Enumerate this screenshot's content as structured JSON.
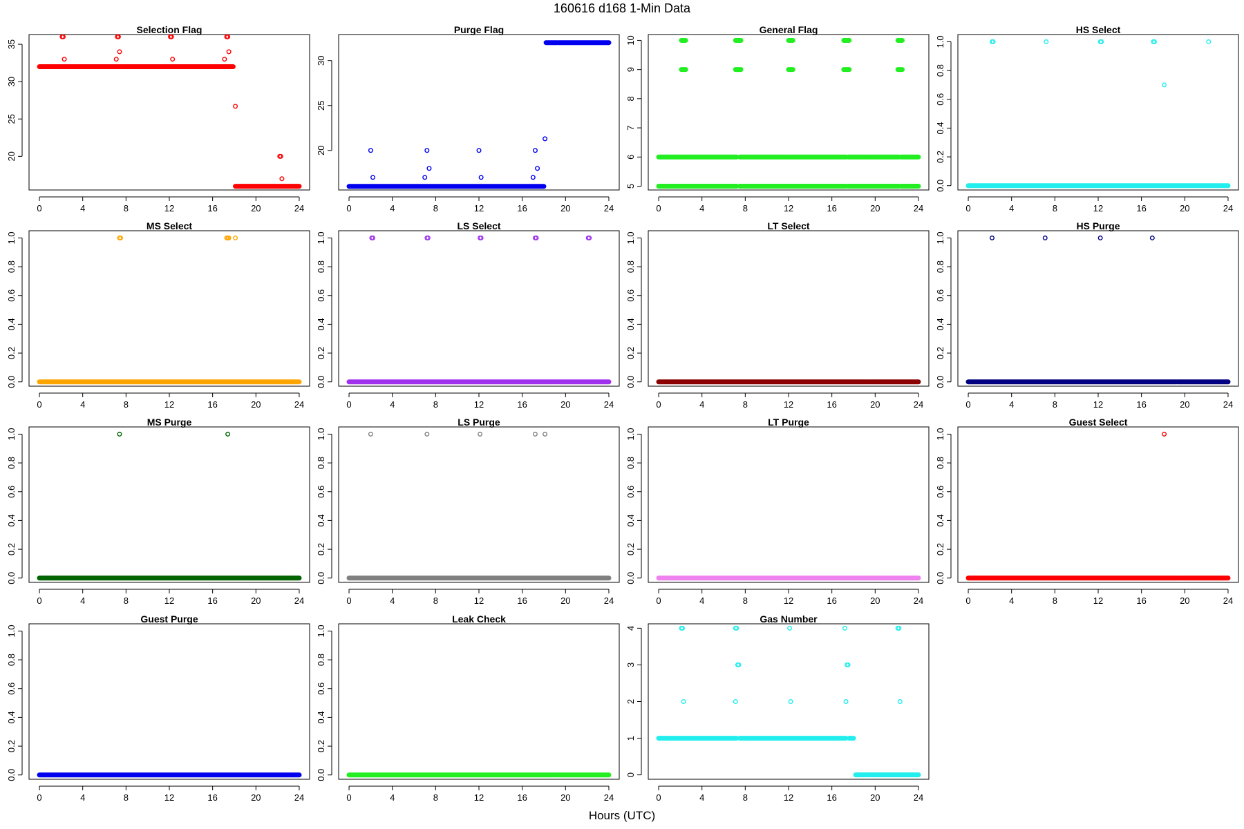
{
  "figure": {
    "title": "160616   d168   1-Min Data",
    "xlabel": "Hours (UTC)"
  },
  "chart_data": [
    {
      "type": "scatter",
      "title": "Selection Flag",
      "color": "#ff0000",
      "xlim": [
        0,
        24
      ],
      "xticks": [
        0,
        4,
        8,
        12,
        16,
        20,
        24
      ],
      "ylim": [
        15.5,
        36.3
      ],
      "yticks": [
        20,
        25,
        30,
        35
      ],
      "ytick_labels": [
        "20",
        "25",
        "30",
        "35"
      ],
      "segments": [
        {
          "x": [
            0,
            7.5
          ],
          "y": 32
        },
        {
          "x": [
            7.6,
            17.9
          ],
          "y": 32
        },
        {
          "x": [
            18.1,
            24
          ],
          "y": 16
        }
      ],
      "points": [
        [
          2.1,
          36
        ],
        [
          2.2,
          36
        ],
        [
          2.3,
          33
        ],
        [
          7.1,
          33
        ],
        [
          7.2,
          36
        ],
        [
          7.3,
          36
        ],
        [
          7.4,
          34
        ],
        [
          12.1,
          36
        ],
        [
          12.2,
          36
        ],
        [
          12.3,
          33
        ],
        [
          17.1,
          33
        ],
        [
          17.3,
          36
        ],
        [
          17.4,
          36
        ],
        [
          17.5,
          34
        ],
        [
          18.1,
          26.7
        ],
        [
          22.2,
          20
        ],
        [
          22.3,
          20
        ],
        [
          22.4,
          17
        ]
      ]
    },
    {
      "type": "scatter",
      "title": "Purge Flag",
      "color": "#0000ee",
      "xlim": [
        0,
        24
      ],
      "xticks": [
        0,
        4,
        8,
        12,
        16,
        20,
        24
      ],
      "ylim": [
        15.6,
        32.9
      ],
      "yticks": [
        20,
        25,
        30
      ],
      "ytick_labels": [
        "20",
        "25",
        "30"
      ],
      "segments": [
        {
          "x": [
            0,
            18
          ],
          "y": 16
        },
        {
          "x": [
            18.2,
            19.2
          ],
          "y": 32
        },
        {
          "x": [
            19.3,
            24
          ],
          "y": 32
        }
      ],
      "points": [
        [
          2.0,
          20
        ],
        [
          2.2,
          17
        ],
        [
          7.0,
          17
        ],
        [
          7.2,
          20
        ],
        [
          7.4,
          18
        ],
        [
          12.0,
          20
        ],
        [
          12.2,
          17
        ],
        [
          17.0,
          17
        ],
        [
          17.2,
          20
        ],
        [
          17.4,
          18
        ],
        [
          18.1,
          21.3
        ]
      ]
    },
    {
      "type": "scatter",
      "title": "General Flag",
      "color": "#22ee22",
      "xlim": [
        0,
        24
      ],
      "xticks": [
        0,
        4,
        8,
        12,
        16,
        20,
        24
      ],
      "ylim": [
        4.87,
        10.2
      ],
      "yticks": [
        5,
        6,
        7,
        8,
        9,
        10
      ],
      "ytick_labels": [
        "5",
        "6",
        "7",
        "8",
        "9",
        "10"
      ],
      "segments": [
        {
          "x": [
            0,
            2.2
          ],
          "y": 6
        },
        {
          "x": [
            2.3,
            7.2
          ],
          "y": 6
        },
        {
          "x": [
            7.5,
            12.1
          ],
          "y": 6
        },
        {
          "x": [
            12.2,
            17.3
          ],
          "y": 6
        },
        {
          "x": [
            17.5,
            19.2
          ],
          "y": 6
        },
        {
          "x": [
            19.3,
            22.2
          ],
          "y": 6
        },
        {
          "x": [
            22.4,
            24
          ],
          "y": 6
        },
        {
          "x": [
            0,
            2.2
          ],
          "y": 5
        },
        {
          "x": [
            2.3,
            7.2
          ],
          "y": 5
        },
        {
          "x": [
            7.5,
            12.1
          ],
          "y": 5
        },
        {
          "x": [
            12.2,
            17.3
          ],
          "y": 5
        },
        {
          "x": [
            17.5,
            19.2
          ],
          "y": 5
        },
        {
          "x": [
            19.3,
            22.2
          ],
          "y": 5
        },
        {
          "x": [
            22.4,
            24
          ],
          "y": 5
        },
        {
          "x": [
            2.1,
            2.5
          ],
          "y": 10
        },
        {
          "x": [
            7.1,
            7.6
          ],
          "y": 10
        },
        {
          "x": [
            12.0,
            12.4
          ],
          "y": 10
        },
        {
          "x": [
            17.1,
            17.6
          ],
          "y": 10
        },
        {
          "x": [
            22.1,
            22.5
          ],
          "y": 10
        },
        {
          "x": [
            2.1,
            2.5
          ],
          "y": 9
        },
        {
          "x": [
            7.1,
            7.6
          ],
          "y": 9
        },
        {
          "x": [
            12.0,
            12.4
          ],
          "y": 9
        },
        {
          "x": [
            17.1,
            17.6
          ],
          "y": 9
        },
        {
          "x": [
            22.1,
            22.5
          ],
          "y": 9
        }
      ],
      "points": []
    },
    {
      "type": "scatter",
      "title": "HS Select",
      "color": "#22eeee",
      "xlim": [
        0,
        24
      ],
      "xticks": [
        0,
        4,
        8,
        12,
        16,
        20,
        24
      ],
      "ylim": [
        -0.03,
        1.05
      ],
      "yticks": [
        0,
        0.2,
        0.4,
        0.6,
        0.8,
        1.0
      ],
      "ytick_labels": [
        "0.0",
        "0.2",
        "0.4",
        "0.6",
        "0.8",
        "1.0"
      ],
      "segments": [
        {
          "x": [
            0,
            19.2
          ],
          "y": 0
        },
        {
          "x": [
            19.3,
            24
          ],
          "y": 0
        }
      ],
      "points": [
        [
          2.2,
          1
        ],
        [
          2.3,
          1
        ],
        [
          7.2,
          1
        ],
        [
          12.2,
          1
        ],
        [
          12.3,
          1
        ],
        [
          17.1,
          1
        ],
        [
          17.2,
          1
        ],
        [
          18.1,
          0.7
        ],
        [
          22.2,
          1
        ]
      ]
    },
    {
      "type": "scatter",
      "title": "MS Select",
      "color": "#ffa500",
      "xlim": [
        0,
        24
      ],
      "xticks": [
        0,
        4,
        8,
        12,
        16,
        20,
        24
      ],
      "ylim": [
        -0.03,
        1.05
      ],
      "yticks": [
        0,
        0.2,
        0.4,
        0.6,
        0.8,
        1.0
      ],
      "ytick_labels": [
        "0.0",
        "0.2",
        "0.4",
        "0.6",
        "0.8",
        "1.0"
      ],
      "segments": [
        {
          "x": [
            0,
            19.2
          ],
          "y": 0
        },
        {
          "x": [
            19.3,
            24
          ],
          "y": 0
        }
      ],
      "points": [
        [
          7.4,
          1
        ],
        [
          7.5,
          1
        ],
        [
          17.3,
          1
        ],
        [
          17.4,
          1
        ],
        [
          17.5,
          1
        ],
        [
          18.1,
          1
        ]
      ]
    },
    {
      "type": "scatter",
      "title": "LS Select",
      "color": "#a030ee",
      "xlim": [
        0,
        24
      ],
      "xticks": [
        0,
        4,
        8,
        12,
        16,
        20,
        24
      ],
      "ylim": [
        -0.03,
        1.05
      ],
      "yticks": [
        0,
        0.2,
        0.4,
        0.6,
        0.8,
        1.0
      ],
      "ytick_labels": [
        "0.0",
        "0.2",
        "0.4",
        "0.6",
        "0.8",
        "1.0"
      ],
      "segments": [
        {
          "x": [
            0,
            19.2
          ],
          "y": 0
        },
        {
          "x": [
            19.3,
            24
          ],
          "y": 0
        }
      ],
      "points": [
        [
          2.1,
          1
        ],
        [
          2.2,
          1
        ],
        [
          7.2,
          1
        ],
        [
          7.3,
          1
        ],
        [
          12.1,
          1
        ],
        [
          12.2,
          1
        ],
        [
          17.2,
          1
        ],
        [
          17.3,
          1
        ],
        [
          22.1,
          1
        ],
        [
          22.2,
          1
        ]
      ]
    },
    {
      "type": "scatter",
      "title": "LT Select",
      "color": "#8b0000",
      "xlim": [
        0,
        24
      ],
      "xticks": [
        0,
        4,
        8,
        12,
        16,
        20,
        24
      ],
      "ylim": [
        -0.03,
        1.05
      ],
      "yticks": [
        0,
        0.2,
        0.4,
        0.6,
        0.8,
        1.0
      ],
      "ytick_labels": [
        "0.0",
        "0.2",
        "0.4",
        "0.6",
        "0.8",
        "1.0"
      ],
      "segments": [
        {
          "x": [
            0,
            19.2
          ],
          "y": 0
        },
        {
          "x": [
            19.3,
            24
          ],
          "y": 0
        }
      ],
      "points": []
    },
    {
      "type": "scatter",
      "title": "HS Purge",
      "color": "#000080",
      "xlim": [
        0,
        24
      ],
      "xticks": [
        0,
        4,
        8,
        12,
        16,
        20,
        24
      ],
      "ylim": [
        -0.03,
        1.05
      ],
      "yticks": [
        0,
        0.2,
        0.4,
        0.6,
        0.8,
        1.0
      ],
      "ytick_labels": [
        "0.0",
        "0.2",
        "0.4",
        "0.6",
        "0.8",
        "1.0"
      ],
      "segments": [
        {
          "x": [
            0,
            19.2
          ],
          "y": 0
        },
        {
          "x": [
            19.3,
            24
          ],
          "y": 0
        }
      ],
      "points": [
        [
          2.2,
          1
        ],
        [
          7.1,
          1
        ],
        [
          12.2,
          1
        ],
        [
          17.0,
          1
        ]
      ]
    },
    {
      "type": "scatter",
      "title": "MS Purge",
      "color": "#006400",
      "xlim": [
        0,
        24
      ],
      "xticks": [
        0,
        4,
        8,
        12,
        16,
        20,
        24
      ],
      "ylim": [
        -0.03,
        1.05
      ],
      "yticks": [
        0,
        0.2,
        0.4,
        0.6,
        0.8,
        1.0
      ],
      "ytick_labels": [
        "0.0",
        "0.2",
        "0.4",
        "0.6",
        "0.8",
        "1.0"
      ],
      "segments": [
        {
          "x": [
            0,
            19.2
          ],
          "y": 0
        },
        {
          "x": [
            19.3,
            24
          ],
          "y": 0
        }
      ],
      "points": [
        [
          7.4,
          1
        ],
        [
          17.4,
          1
        ]
      ]
    },
    {
      "type": "scatter",
      "title": "LS Purge",
      "color": "#808080",
      "xlim": [
        0,
        24
      ],
      "xticks": [
        0,
        4,
        8,
        12,
        16,
        20,
        24
      ],
      "ylim": [
        -0.03,
        1.05
      ],
      "yticks": [
        0,
        0.2,
        0.4,
        0.6,
        0.8,
        1.0
      ],
      "ytick_labels": [
        "0.0",
        "0.2",
        "0.4",
        "0.6",
        "0.8",
        "1.0"
      ],
      "segments": [
        {
          "x": [
            0,
            19.2
          ],
          "y": 0
        },
        {
          "x": [
            19.3,
            24
          ],
          "y": 0
        }
      ],
      "points": [
        [
          2.0,
          1
        ],
        [
          7.2,
          1
        ],
        [
          12.1,
          1
        ],
        [
          17.2,
          1
        ],
        [
          18.1,
          1
        ]
      ]
    },
    {
      "type": "scatter",
      "title": "LT Purge",
      "color": "#ee82ee",
      "xlim": [
        0,
        24
      ],
      "xticks": [
        0,
        4,
        8,
        12,
        16,
        20,
        24
      ],
      "ylim": [
        -0.03,
        1.05
      ],
      "yticks": [
        0,
        0.2,
        0.4,
        0.6,
        0.8,
        1.0
      ],
      "ytick_labels": [
        "0.0",
        "0.2",
        "0.4",
        "0.6",
        "0.8",
        "1.0"
      ],
      "segments": [
        {
          "x": [
            0,
            19.2
          ],
          "y": 0
        },
        {
          "x": [
            19.3,
            24
          ],
          "y": 0
        }
      ],
      "points": []
    },
    {
      "type": "scatter",
      "title": "Guest Select",
      "color": "#ff0000",
      "xlim": [
        0,
        24
      ],
      "xticks": [
        0,
        4,
        8,
        12,
        16,
        20,
        24
      ],
      "ylim": [
        -0.03,
        1.05
      ],
      "yticks": [
        0,
        0.2,
        0.4,
        0.6,
        0.8,
        1.0
      ],
      "ytick_labels": [
        "0.0",
        "0.2",
        "0.4",
        "0.6",
        "0.8",
        "1.0"
      ],
      "segments": [
        {
          "x": [
            0,
            19.2
          ],
          "y": 0
        },
        {
          "x": [
            19.3,
            24
          ],
          "y": 0
        }
      ],
      "points": [
        [
          18.1,
          1
        ]
      ]
    },
    {
      "type": "scatter",
      "title": "Guest Purge",
      "color": "#0000ee",
      "xlim": [
        0,
        24
      ],
      "xticks": [
        0,
        4,
        8,
        12,
        16,
        20,
        24
      ],
      "ylim": [
        -0.03,
        1.05
      ],
      "yticks": [
        0,
        0.2,
        0.4,
        0.6,
        0.8,
        1.0
      ],
      "ytick_labels": [
        "0.0",
        "0.2",
        "0.4",
        "0.6",
        "0.8",
        "1.0"
      ],
      "segments": [
        {
          "x": [
            0,
            19.2
          ],
          "y": 0
        },
        {
          "x": [
            19.3,
            24
          ],
          "y": 0
        }
      ],
      "points": []
    },
    {
      "type": "scatter",
      "title": "Leak Check",
      "color": "#22ee22",
      "xlim": [
        0,
        24
      ],
      "xticks": [
        0,
        4,
        8,
        12,
        16,
        20,
        24
      ],
      "ylim": [
        -0.03,
        1.05
      ],
      "yticks": [
        0,
        0.2,
        0.4,
        0.6,
        0.8,
        1.0
      ],
      "ytick_labels": [
        "0.0",
        "0.2",
        "0.4",
        "0.6",
        "0.8",
        "1.0"
      ],
      "segments": [
        {
          "x": [
            0,
            19.2
          ],
          "y": 0
        },
        {
          "x": [
            19.3,
            24
          ],
          "y": 0
        }
      ],
      "points": []
    },
    {
      "type": "scatter",
      "title": "Gas Number",
      "color": "#22eeee",
      "xlim": [
        0,
        24
      ],
      "xticks": [
        0,
        4,
        8,
        12,
        16,
        20,
        24
      ],
      "ylim": [
        -0.12,
        4.12
      ],
      "yticks": [
        0,
        1,
        2,
        3,
        4
      ],
      "ytick_labels": [
        "0",
        "1",
        "2",
        "3",
        "4"
      ],
      "segments": [
        {
          "x": [
            0,
            2.2
          ],
          "y": 1
        },
        {
          "x": [
            2.3,
            7.2
          ],
          "y": 1
        },
        {
          "x": [
            7.5,
            12.1
          ],
          "y": 1
        },
        {
          "x": [
            12.2,
            17.3
          ],
          "y": 1
        },
        {
          "x": [
            17.6,
            18.0
          ],
          "y": 1
        },
        {
          "x": [
            18.2,
            19.2
          ],
          "y": 0
        },
        {
          "x": [
            19.3,
            24
          ],
          "y": 0
        }
      ],
      "points": [
        [
          2.1,
          4
        ],
        [
          2.2,
          4
        ],
        [
          2.3,
          2
        ],
        [
          7.1,
          4
        ],
        [
          7.2,
          4
        ],
        [
          7.1,
          2
        ],
        [
          7.3,
          3
        ],
        [
          7.4,
          3
        ],
        [
          12.1,
          4
        ],
        [
          12.2,
          2
        ],
        [
          17.2,
          4
        ],
        [
          17.3,
          2
        ],
        [
          17.4,
          3
        ],
        [
          17.5,
          3
        ],
        [
          22.1,
          4
        ],
        [
          22.2,
          4
        ],
        [
          22.3,
          2
        ]
      ]
    }
  ]
}
